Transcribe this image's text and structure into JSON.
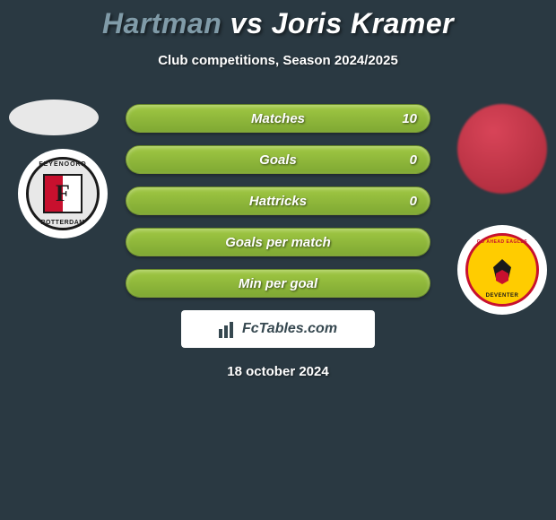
{
  "title": {
    "player1": "Hartman",
    "vs": "vs",
    "player2": "Joris Kramer"
  },
  "subtitle": "Club competitions, Season 2024/2025",
  "stats": [
    {
      "label": "Matches",
      "value_right": "10"
    },
    {
      "label": "Goals",
      "value_right": "0"
    },
    {
      "label": "Hattricks",
      "value_right": "0"
    },
    {
      "label": "Goals per match",
      "value_right": ""
    },
    {
      "label": "Min per goal",
      "value_right": ""
    }
  ],
  "club1": {
    "name": "Feyenoord",
    "text_top": "FEYENOORD",
    "text_bottom": "ROTTERDAM",
    "letter": "F"
  },
  "club2": {
    "name": "Go Ahead Eagles",
    "text_top": "GO AHEAD EAGLES",
    "text_bottom": "DEVENTER"
  },
  "branding": "FcTables.com",
  "date": "18 october 2024",
  "colors": {
    "background": "#2a3942",
    "bar_gradient_top": "#a0c843",
    "bar_gradient_bottom": "#7fa833",
    "player1_color": "#809ba8",
    "text_color": "#ffffff"
  }
}
